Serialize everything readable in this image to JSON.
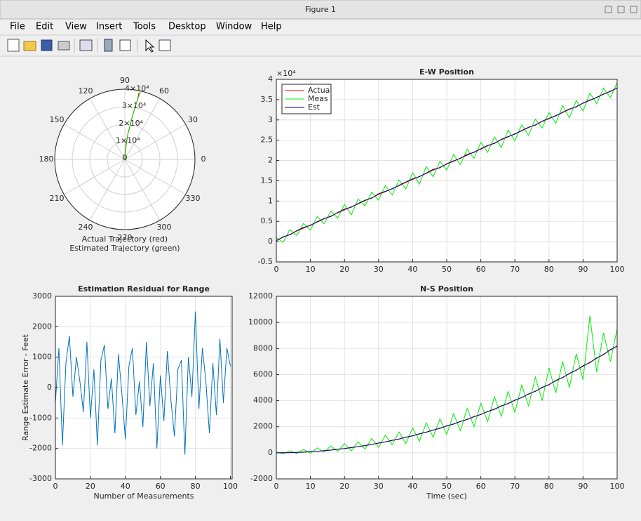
{
  "window_title": "Figure 1",
  "menu": [
    "File",
    "Edit",
    "View",
    "Insert",
    "Tools",
    "Desktop",
    "Window",
    "Help"
  ],
  "chart_data": [
    {
      "type": "polar",
      "xlabel": [
        "Actual Trajectory (red)",
        "Estimated Trajectory (green)"
      ],
      "thetaticks": [
        0,
        30,
        60,
        90,
        120,
        150,
        180,
        210,
        240,
        270,
        300,
        330
      ],
      "rlim": [
        0,
        40000
      ],
      "rticks": [
        0,
        {
          "value": 10000,
          "label": "1×10⁴"
        },
        {
          "value": 20000,
          "label": "2×10⁴"
        },
        {
          "value": 30000,
          "label": "3×10⁴"
        },
        {
          "value": 40000,
          "label": "4×10⁴"
        }
      ],
      "series": [
        {
          "color": "#ff0000",
          "theta": [
            90,
            87,
            85,
            83,
            81,
            80,
            79,
            78,
            78
          ],
          "r": [
            0,
            5000,
            10000,
            15000,
            20000,
            25000,
            30000,
            35000,
            39000
          ]
        },
        {
          "color": "#00cc00",
          "theta": [
            90,
            86,
            84,
            83,
            81,
            80,
            79,
            78,
            77
          ],
          "r": [
            0,
            5200,
            10300,
            15200,
            20400,
            25100,
            30300,
            35200,
            39500
          ]
        }
      ]
    },
    {
      "type": "line",
      "title": "E-W Position",
      "y_multiplier": "×10⁴",
      "legend": "upper left",
      "grid": true,
      "xlim": [
        0,
        100
      ],
      "xticks": [
        0,
        10,
        20,
        30,
        40,
        50,
        60,
        70,
        80,
        90,
        100
      ],
      "ylim": [
        -0.5,
        4
      ],
      "yticks": [
        -0.5,
        0,
        0.5,
        1,
        1.5,
        2,
        2.5,
        3,
        3.5,
        4
      ],
      "x": [
        0,
        2,
        4,
        6,
        8,
        10,
        12,
        14,
        16,
        18,
        20,
        22,
        24,
        26,
        28,
        30,
        32,
        34,
        36,
        38,
        40,
        42,
        44,
        46,
        48,
        50,
        52,
        54,
        56,
        58,
        60,
        62,
        64,
        66,
        68,
        70,
        72,
        74,
        76,
        78,
        80,
        82,
        84,
        86,
        88,
        90,
        92,
        94,
        96,
        98,
        100
      ],
      "series": [
        {
          "name": "Actual",
          "color": "#ff0000",
          "values": [
            0.03,
            0.11,
            0.18,
            0.26,
            0.33,
            0.41,
            0.48,
            0.56,
            0.63,
            0.71,
            0.78,
            0.86,
            0.93,
            1.01,
            1.08,
            1.16,
            1.23,
            1.31,
            1.38,
            1.46,
            1.53,
            1.61,
            1.68,
            1.76,
            1.83,
            1.91,
            1.98,
            2.06,
            2.13,
            2.21,
            2.28,
            2.36,
            2.43,
            2.51,
            2.58,
            2.66,
            2.73,
            2.81,
            2.88,
            2.96,
            3.03,
            3.11,
            3.18,
            3.26,
            3.33,
            3.41,
            3.48,
            3.56,
            3.63,
            3.71,
            3.78
          ]
        },
        {
          "name": "Meas",
          "color": "#00ee00",
          "values": [
            0.1,
            -0.02,
            0.3,
            0.15,
            0.45,
            0.28,
            0.62,
            0.44,
            0.75,
            0.58,
            0.92,
            0.66,
            1.05,
            0.88,
            1.22,
            1.02,
            1.38,
            1.15,
            1.52,
            1.3,
            1.7,
            1.42,
            1.85,
            1.6,
            1.98,
            1.76,
            2.15,
            1.9,
            2.28,
            2.05,
            2.45,
            2.2,
            2.58,
            2.32,
            2.75,
            2.48,
            2.88,
            2.62,
            3.02,
            2.8,
            3.18,
            2.92,
            3.35,
            3.05,
            3.48,
            3.22,
            3.66,
            3.4,
            3.78,
            3.55,
            3.92
          ]
        },
        {
          "name": "Est",
          "color": "#000080",
          "values": [
            0.02,
            0.12,
            0.17,
            0.27,
            0.35,
            0.4,
            0.49,
            0.57,
            0.62,
            0.72,
            0.8,
            0.85,
            0.94,
            1.02,
            1.07,
            1.18,
            1.24,
            1.3,
            1.39,
            1.47,
            1.55,
            1.6,
            1.69,
            1.78,
            1.82,
            1.92,
            1.99,
            2.05,
            2.15,
            2.2,
            2.29,
            2.37,
            2.42,
            2.52,
            2.59,
            2.65,
            2.74,
            2.82,
            2.87,
            2.97,
            3.04,
            3.1,
            3.19,
            3.27,
            3.32,
            3.42,
            3.49,
            3.55,
            3.64,
            3.7,
            3.79
          ]
        }
      ]
    },
    {
      "type": "line",
      "title": "Estimation Residual for Range",
      "xlabel": "Number of Measurements",
      "ylabel": "Range Estimate Error - Feet",
      "grid": true,
      "xlim": [
        0,
        101
      ],
      "xticks": [
        0,
        20,
        40,
        60,
        80,
        100
      ],
      "ylim": [
        -3000,
        3000
      ],
      "yticks": [
        -3000,
        -2000,
        -1000,
        0,
        1000,
        2000,
        3000
      ],
      "x": [
        0,
        2,
        4,
        6,
        8,
        10,
        12,
        14,
        16,
        18,
        20,
        22,
        24,
        26,
        28,
        30,
        32,
        34,
        36,
        38,
        40,
        42,
        44,
        46,
        48,
        50,
        52,
        54,
        56,
        58,
        60,
        62,
        64,
        66,
        68,
        70,
        72,
        74,
        76,
        78,
        80,
        82,
        84,
        86,
        88,
        90,
        92,
        94,
        96,
        98,
        100
      ],
      "series": [
        {
          "color": "#0072bd",
          "values": [
            -500,
            1300,
            -1900,
            800,
            1700,
            -300,
            1000,
            200,
            -800,
            1500,
            -1000,
            600,
            -1900,
            900,
            1400,
            -700,
            300,
            -1500,
            1100,
            -200,
            -1700,
            700,
            1300,
            -900,
            200,
            -1300,
            1500,
            -600,
            800,
            -2000,
            400,
            -1100,
            1200,
            -400,
            -1600,
            600,
            900,
            -2200,
            1000,
            -300,
            2500,
            -700,
            1300,
            200,
            -1500,
            800,
            -900,
            1600,
            -500,
            1300,
            700
          ]
        }
      ]
    },
    {
      "type": "line",
      "title": "N-S Position",
      "xlabel": "Time (sec)",
      "grid": true,
      "xlim": [
        0,
        100
      ],
      "xticks": [
        0,
        10,
        20,
        30,
        40,
        50,
        60,
        70,
        80,
        90,
        100
      ],
      "ylim": [
        -2000,
        12000
      ],
      "yticks": [
        -2000,
        0,
        2000,
        4000,
        6000,
        8000,
        10000,
        12000
      ],
      "x": [
        0,
        2,
        4,
        6,
        8,
        10,
        12,
        14,
        16,
        18,
        20,
        22,
        24,
        26,
        28,
        30,
        32,
        34,
        36,
        38,
        40,
        42,
        44,
        46,
        48,
        50,
        52,
        54,
        56,
        58,
        60,
        62,
        64,
        66,
        68,
        70,
        72,
        74,
        76,
        78,
        80,
        82,
        84,
        86,
        88,
        90,
        92,
        94,
        96,
        98,
        100
      ],
      "series": [
        {
          "color": "#ff0000",
          "values": [
            0,
            3,
            13,
            30,
            52,
            82,
            118,
            161,
            210,
            266,
            328,
            397,
            472,
            554,
            643,
            738,
            840,
            948,
            1063,
            1184,
            1312,
            1446,
            1588,
            1735,
            1889,
            2050,
            2217,
            2391,
            2572,
            2758,
            2952,
            3152,
            3359,
            3572,
            3792,
            4018,
            4251,
            4490,
            4736,
            4989,
            5248,
            5514,
            5786,
            6065,
            6350,
            6642,
            6940,
            7246,
            7557,
            7875,
            8200
          ]
        },
        {
          "color": "#00ee00",
          "values": [
            50,
            -80,
            150,
            -60,
            260,
            -40,
            380,
            60,
            520,
            110,
            700,
            150,
            850,
            300,
            1100,
            420,
            1350,
            600,
            1600,
            700,
            1900,
            900,
            2300,
            1200,
            2600,
            1400,
            3000,
            1700,
            3400,
            2000,
            3800,
            2400,
            4300,
            2800,
            4700,
            3100,
            5200,
            3600,
            5800,
            4000,
            6500,
            4600,
            7000,
            5000,
            7600,
            5600,
            10500,
            6200,
            9200,
            7000,
            9500
          ]
        },
        {
          "color": "#000080",
          "values": [
            0,
            5,
            10,
            35,
            48,
            90,
            110,
            170,
            205,
            275,
            320,
            405,
            465,
            560,
            635,
            750,
            830,
            960,
            1050,
            1200,
            1300,
            1460,
            1575,
            1750,
            1870,
            2070,
            2200,
            2410,
            2550,
            2780,
            2930,
            3180,
            3330,
            3600,
            3770,
            4040,
            4230,
            4520,
            4710,
            5020,
            5220,
            5550,
            5760,
            6100,
            6320,
            6680,
            6910,
            7280,
            7530,
            7910,
            8180
          ]
        }
      ]
    }
  ]
}
